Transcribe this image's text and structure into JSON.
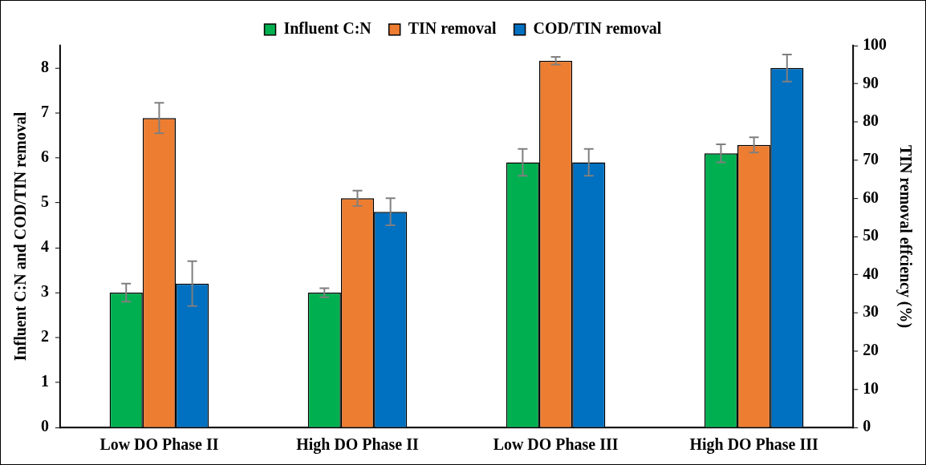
{
  "chart_data": {
    "type": "bar",
    "categories": [
      "Low DO Phase II",
      "High DO Phase II",
      "Low DO Phase III",
      "High DO Phase III"
    ],
    "ylabel": "Influent C:N and COD/TIN removal",
    "y2label": "TIN removal effciency (%)",
    "series": [
      {
        "name": "Influent C:N",
        "color": "#00b050",
        "values": [
          3,
          3,
          5.9,
          6.1
        ],
        "errors": [
          0.2,
          0.1,
          0.3,
          0.2
        ]
      },
      {
        "name": "TIN removal",
        "color": "#ed7d31",
        "axis": "y2",
        "values": [
          81,
          60,
          96,
          74
        ],
        "errors": [
          4,
          2,
          1,
          2
        ]
      },
      {
        "name": "COD/TIN removal",
        "color": "#0070c0",
        "values": [
          3.2,
          4.8,
          5.9,
          8.0
        ],
        "errors": [
          0.5,
          0.3,
          0.3,
          0.3
        ]
      }
    ],
    "ylim": [
      0,
      8.5
    ],
    "yticks": [
      0,
      1,
      2,
      3,
      4,
      5,
      6,
      7,
      8
    ],
    "y2lim": [
      0,
      100
    ],
    "y2ticks": [
      0,
      10,
      20,
      30,
      40,
      50,
      60,
      70,
      80,
      90,
      100
    ],
    "legend": "top",
    "grid": false
  }
}
